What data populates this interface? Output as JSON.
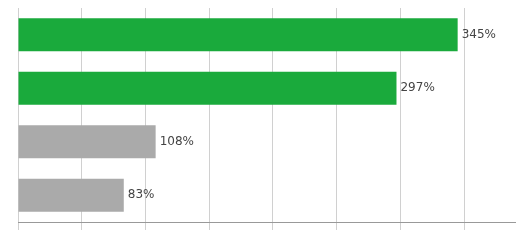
{
  "chart_data": {
    "type": "bar",
    "orientation": "horizontal",
    "categories": [
      null,
      null,
      null,
      null
    ],
    "values": [
      345,
      297,
      108,
      83
    ],
    "value_labels": [
      "345%",
      "297%",
      "108%",
      "83%"
    ],
    "colors": [
      "#1aaa3c",
      "#1aaa3c",
      "#aaaaaa",
      "#aaaaaa"
    ],
    "xlim": [
      0,
      390
    ],
    "xticks": [
      0,
      50,
      100,
      150,
      200,
      250,
      300,
      350
    ],
    "grid": true,
    "tick_labels": false,
    "data_labels": true
  }
}
